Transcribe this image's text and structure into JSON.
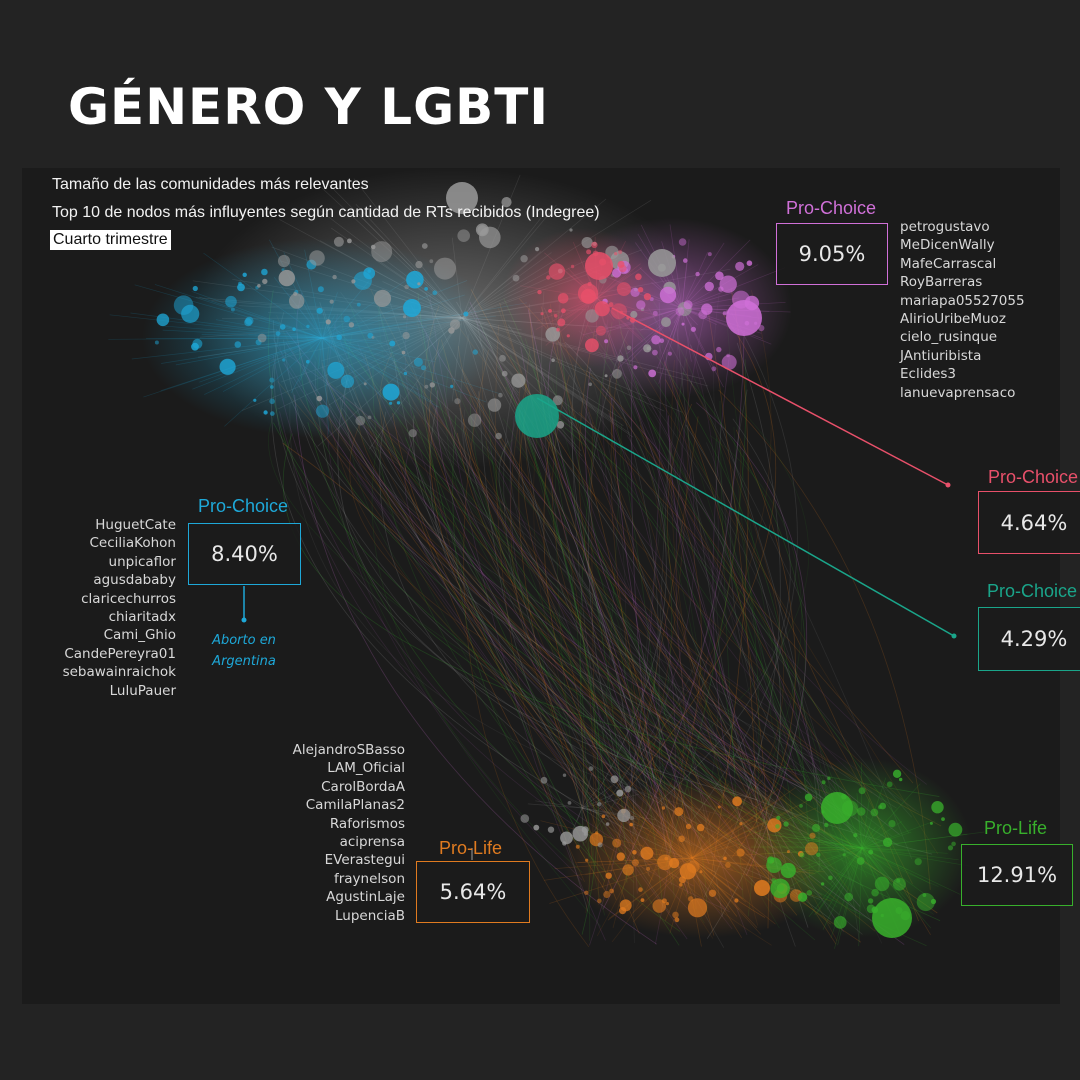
{
  "title": "GÉNERO Y LGBTI",
  "subtitle_line1": "Tamaño de las comunidades más relevantes",
  "subtitle_line2": "Top 10 de nodos más influyentes según cantidad de RTs recibidos (Indegree)",
  "period": "Cuarto trimestre",
  "colors": {
    "violet": "#d070d8",
    "pink": "#e8506a",
    "teal": "#1aa58a",
    "cyan": "#1ea8d8",
    "orange": "#e07b20",
    "green": "#38b02c",
    "grey": "#9a9a9a"
  },
  "communities": {
    "violet": {
      "label": "Pro-Choice",
      "pct": "9.05%",
      "users": [
        "petrogustavo",
        "MeDicenWally",
        "MafeCarrascal",
        "RoyBarreras",
        "mariapa05527055",
        "AlirioUribeMuoz",
        "cielo_rusinque",
        "JAntiuribista",
        "Eclides3",
        "lanuevaprensaco"
      ]
    },
    "pink": {
      "label": "Pro-Choice",
      "pct": "4.64%"
    },
    "teal": {
      "label": "Pro-Choice",
      "pct": "4.29%"
    },
    "cyan": {
      "label": "Pro-Choice",
      "pct": "8.40%",
      "note_line1": "Aborto en",
      "note_line2": "Argentina",
      "users": [
        "HuguetCate",
        "CeciliaKohon",
        "unpicaflor",
        "agusdababy",
        "claricechurros",
        "chiaritadx",
        "Cami_Ghio",
        "CandePereyra01",
        "sebawainraichok",
        "LuluPauer"
      ]
    },
    "orange": {
      "label": "Pro-Life",
      "pct": "5.64%",
      "users": [
        "AlejandroSBasso",
        "LAM_Oficial",
        "CarolBordaA",
        "CamilaPlanas2",
        "Raforismos",
        "aciprensa",
        "EVerastegui",
        "fraynelson",
        "AgustinLaje",
        "LupenciaB"
      ]
    },
    "green": {
      "label": "Pro-Life",
      "pct": "12.91%"
    }
  }
}
